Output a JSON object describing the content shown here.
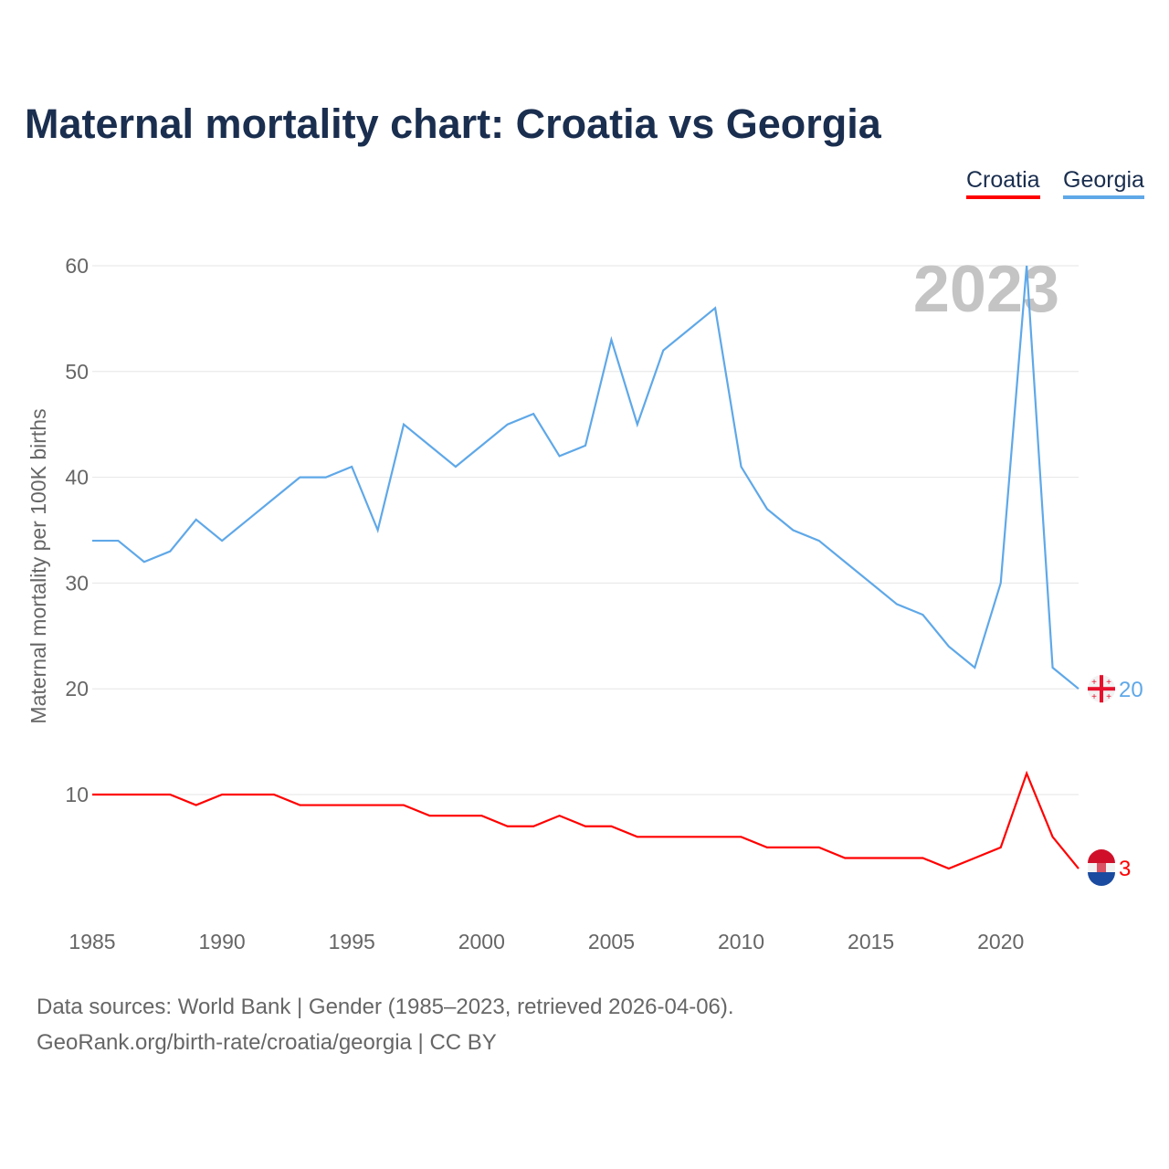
{
  "chart_data": {
    "type": "line",
    "title": "Maternal mortality chart: Croatia vs Georgia",
    "ylabel": "Maternal mortality per 100K births",
    "xlabel": "",
    "ylim": [
      0,
      60
    ],
    "xlim": [
      1985,
      2023
    ],
    "yticks": [
      10,
      20,
      30,
      40,
      50,
      60
    ],
    "xticks": [
      1985,
      1990,
      1995,
      2000,
      2005,
      2010,
      2015,
      2020
    ],
    "grid": true,
    "legend_placement": "top-right",
    "year_label": "2023",
    "x": [
      1985,
      1986,
      1987,
      1988,
      1989,
      1990,
      1991,
      1992,
      1993,
      1994,
      1995,
      1996,
      1997,
      1998,
      1999,
      2000,
      2001,
      2002,
      2003,
      2004,
      2005,
      2006,
      2007,
      2008,
      2009,
      2010,
      2011,
      2012,
      2013,
      2014,
      2015,
      2016,
      2017,
      2018,
      2019,
      2020,
      2021,
      2022,
      2023
    ],
    "series": [
      {
        "name": "Croatia",
        "color": "#ff0000",
        "end_label": "3",
        "values": [
          10,
          10,
          10,
          10,
          9,
          10,
          10,
          10,
          9,
          9,
          9,
          9,
          9,
          8,
          8,
          8,
          7,
          7,
          8,
          7,
          7,
          6,
          6,
          6,
          6,
          6,
          5,
          5,
          5,
          4,
          4,
          4,
          4,
          3,
          4,
          5,
          12,
          6,
          3
        ]
      },
      {
        "name": "Georgia",
        "color": "#5fa8e8",
        "end_label": "20",
        "values": [
          34,
          34,
          32,
          33,
          36,
          34,
          36,
          38,
          40,
          40,
          41,
          35,
          45,
          43,
          41,
          43,
          45,
          46,
          42,
          43,
          53,
          45,
          52,
          54,
          56,
          41,
          37,
          35,
          34,
          32,
          30,
          28,
          27,
          24,
          22,
          30,
          60,
          22,
          20
        ]
      }
    ]
  },
  "footer": {
    "line1": "Data sources: World Bank | Gender (1985–2023, retrieved 2026-04-06).",
    "line2": "GeoRank.org/birth-rate/croatia/georgia | CC BY"
  }
}
